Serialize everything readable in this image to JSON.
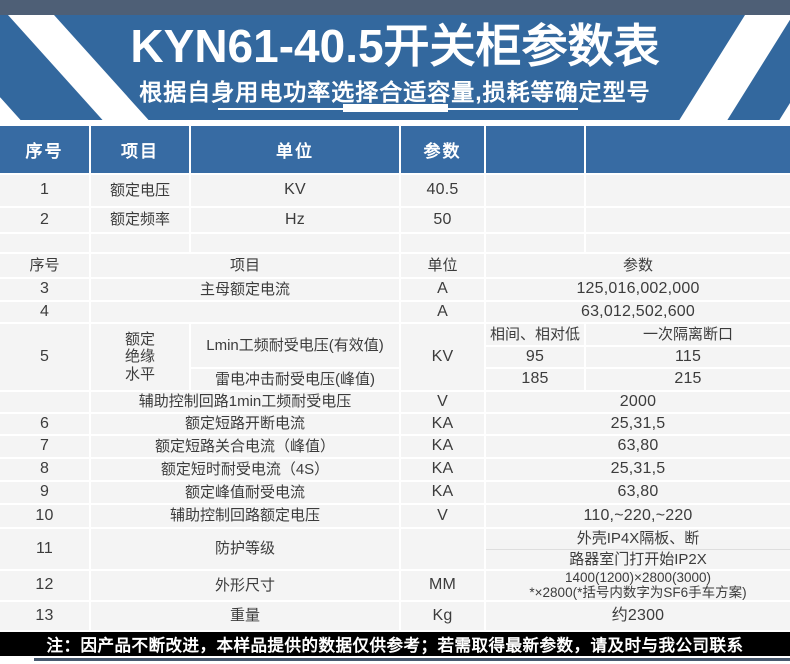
{
  "banner": {
    "title": "KYN61-40.5开关柜参数表",
    "subtitle": "根据自身用电功率选择合适容量,损耗等确定型号"
  },
  "table": {
    "header1": {
      "no": "序号",
      "item": "项目",
      "unit": "单位",
      "param": "参数"
    },
    "rows_top": [
      {
        "no": "1",
        "item": "额定电压",
        "unit": "KV",
        "param": "40.5"
      },
      {
        "no": "2",
        "item": "额定频率",
        "unit": "Hz",
        "param": "50"
      }
    ],
    "header2": {
      "no": "序号",
      "item": "项目",
      "unit": "单位",
      "param": "参数"
    },
    "row3": {
      "no": "3",
      "item": "主母额定电流",
      "unit": "A",
      "param": "125,016,002,000"
    },
    "row4": {
      "no": "4",
      "item": "",
      "unit": "A",
      "param": "63,012,502,600"
    },
    "row5": {
      "no": "5",
      "ins1": "额定",
      "ins2": "绝缘",
      "ins3": "水平",
      "item_a": "Lmin工频耐受电压(有效值)",
      "item_b": "雷电冲击耐受电压(峰值)",
      "unit": "KV",
      "head_left": "相间、相对低",
      "head_right": "一次隔离断口",
      "a_left": "95",
      "a_right": "115",
      "b_left": "185",
      "b_right": "215"
    },
    "row5x": {
      "no": "",
      "item": "辅助控制回路1min工频耐受电压",
      "unit": "V",
      "param": "2000"
    },
    "rows_mid": [
      {
        "no": "6",
        "item": "额定短路开断电流",
        "unit": "KA",
        "param": "25,31,5"
      },
      {
        "no": "7",
        "item": "额定短路关合电流（峰值）",
        "unit": "KA",
        "param": "63,80"
      },
      {
        "no": "8",
        "item": "额定短时耐受电流（4S）",
        "unit": "KA",
        "param": "25,31,5"
      },
      {
        "no": "9",
        "item": "额定峰值耐受电流",
        "unit": "KA",
        "param": "63,80"
      },
      {
        "no": "10",
        "item": "辅助控制回路额定电压",
        "unit": "V",
        "param": "110,~220,~220"
      }
    ],
    "row11": {
      "no": "11",
      "item": "防护等级",
      "unit": "",
      "param_line1": "外壳IP4X隔板、断",
      "param_line2": "路器室门打开始IP2X"
    },
    "row12": {
      "no": "12",
      "item": "外形尺寸",
      "unit": "MM",
      "param_line1": "1400(1200)×2800(3000)",
      "param_line2": "*×2800(*括号内数字为SF6手车方案)"
    },
    "row13": {
      "no": "13",
      "item": "重量",
      "unit": "Kg",
      "param": "约2300"
    }
  },
  "note": "注：因产品不断改进，本样品提供的数据仅供参考；若需取得最新参数，请及时与我公司联系",
  "colors": {
    "topbar_slate": "#4e5f76",
    "banner_blue": "#33689e",
    "header_blue": "#376ba3",
    "row_bg": "#f4f4f4",
    "note_bg": "#000000",
    "footer_line": "#47586e"
  }
}
